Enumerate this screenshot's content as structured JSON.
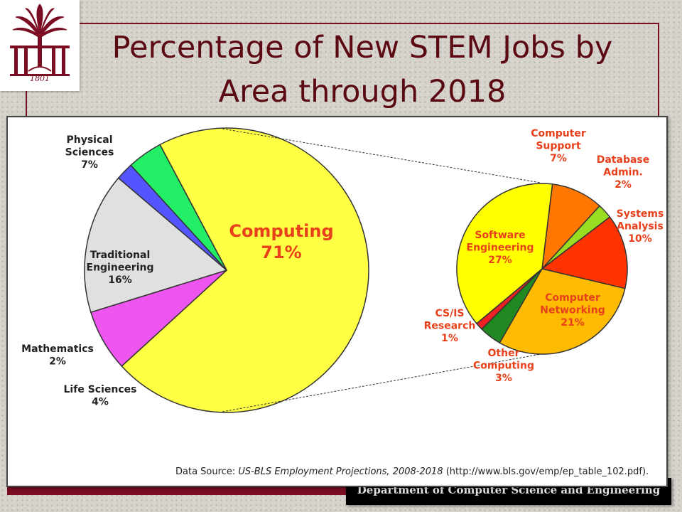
{
  "slide": {
    "title_line1": "Percentage of New STEM Jobs by",
    "title_line2": "Area through 2018",
    "footer_department": "Department of Computer Science and Engineering",
    "source_prefix": "Data Source: ",
    "source_name": "US-BLS Employment Projections, 2008-2018",
    "source_url": " (http://www.bls.gov/emp/ep_table_102.pdf).",
    "logo_year": "1801"
  },
  "colors": {
    "maroon": "#7a0d21",
    "computing": "#ffff44",
    "physical_sciences": "#ee55ee",
    "traditional_engineering": "#e0e0e0",
    "mathematics": "#5555ff",
    "life_sciences": "#22ee66",
    "label_red": "#e8401a"
  },
  "chart_data": [
    {
      "type": "pie",
      "title": "Percentage of New STEM Jobs by Area through 2018",
      "slices": [
        {
          "label_lines": [
            "Computing",
            "71%"
          ],
          "name": "Computing",
          "value": 71,
          "color": "#ffff44"
        },
        {
          "label_lines": [
            "Physical",
            "Sciences",
            "7%"
          ],
          "name": "Physical Sciences",
          "value": 7,
          "color": "#ee55ee"
        },
        {
          "label_lines": [
            "Traditional",
            "Engineering",
            "16%"
          ],
          "name": "Traditional Engineering",
          "value": 16,
          "color": "#e0e0e0"
        },
        {
          "label_lines": [
            "Mathematics",
            "2%"
          ],
          "name": "Mathematics",
          "value": 2,
          "color": "#5555ff"
        },
        {
          "label_lines": [
            "Life Sciences",
            "4%"
          ],
          "name": "Life Sciences",
          "value": 4,
          "color": "#22ee66"
        }
      ]
    },
    {
      "type": "pie",
      "title": "Computing",
      "slices": [
        {
          "label_lines": [
            "Computer",
            "Support",
            "7%"
          ],
          "name": "Computer Support",
          "value": 7,
          "color": "#ff7700"
        },
        {
          "label_lines": [
            "Database",
            "Admin.",
            "2%"
          ],
          "name": "Database Admin.",
          "value": 2,
          "color": "#99dd22"
        },
        {
          "label_lines": [
            "Systems",
            "Analysis",
            "10%"
          ],
          "name": "Systems Analysis",
          "value": 10,
          "color": "#ff3300"
        },
        {
          "label_lines": [
            "Computer",
            "Networking",
            "21%"
          ],
          "name": "Computer Networking",
          "value": 21,
          "color": "#ffbb00"
        },
        {
          "label_lines": [
            "Other",
            "Computing",
            "3%"
          ],
          "name": "Other Computing",
          "value": 3,
          "color": "#228822"
        },
        {
          "label_lines": [
            "CS/IS",
            "Research",
            "1%"
          ],
          "name": "CS/IS Research",
          "value": 1,
          "color": "#ee2222"
        },
        {
          "label_lines": [
            "Software",
            "Engineering",
            "27%"
          ],
          "name": "Software Engineering",
          "value": 27,
          "color": "#ffff00"
        }
      ]
    }
  ]
}
